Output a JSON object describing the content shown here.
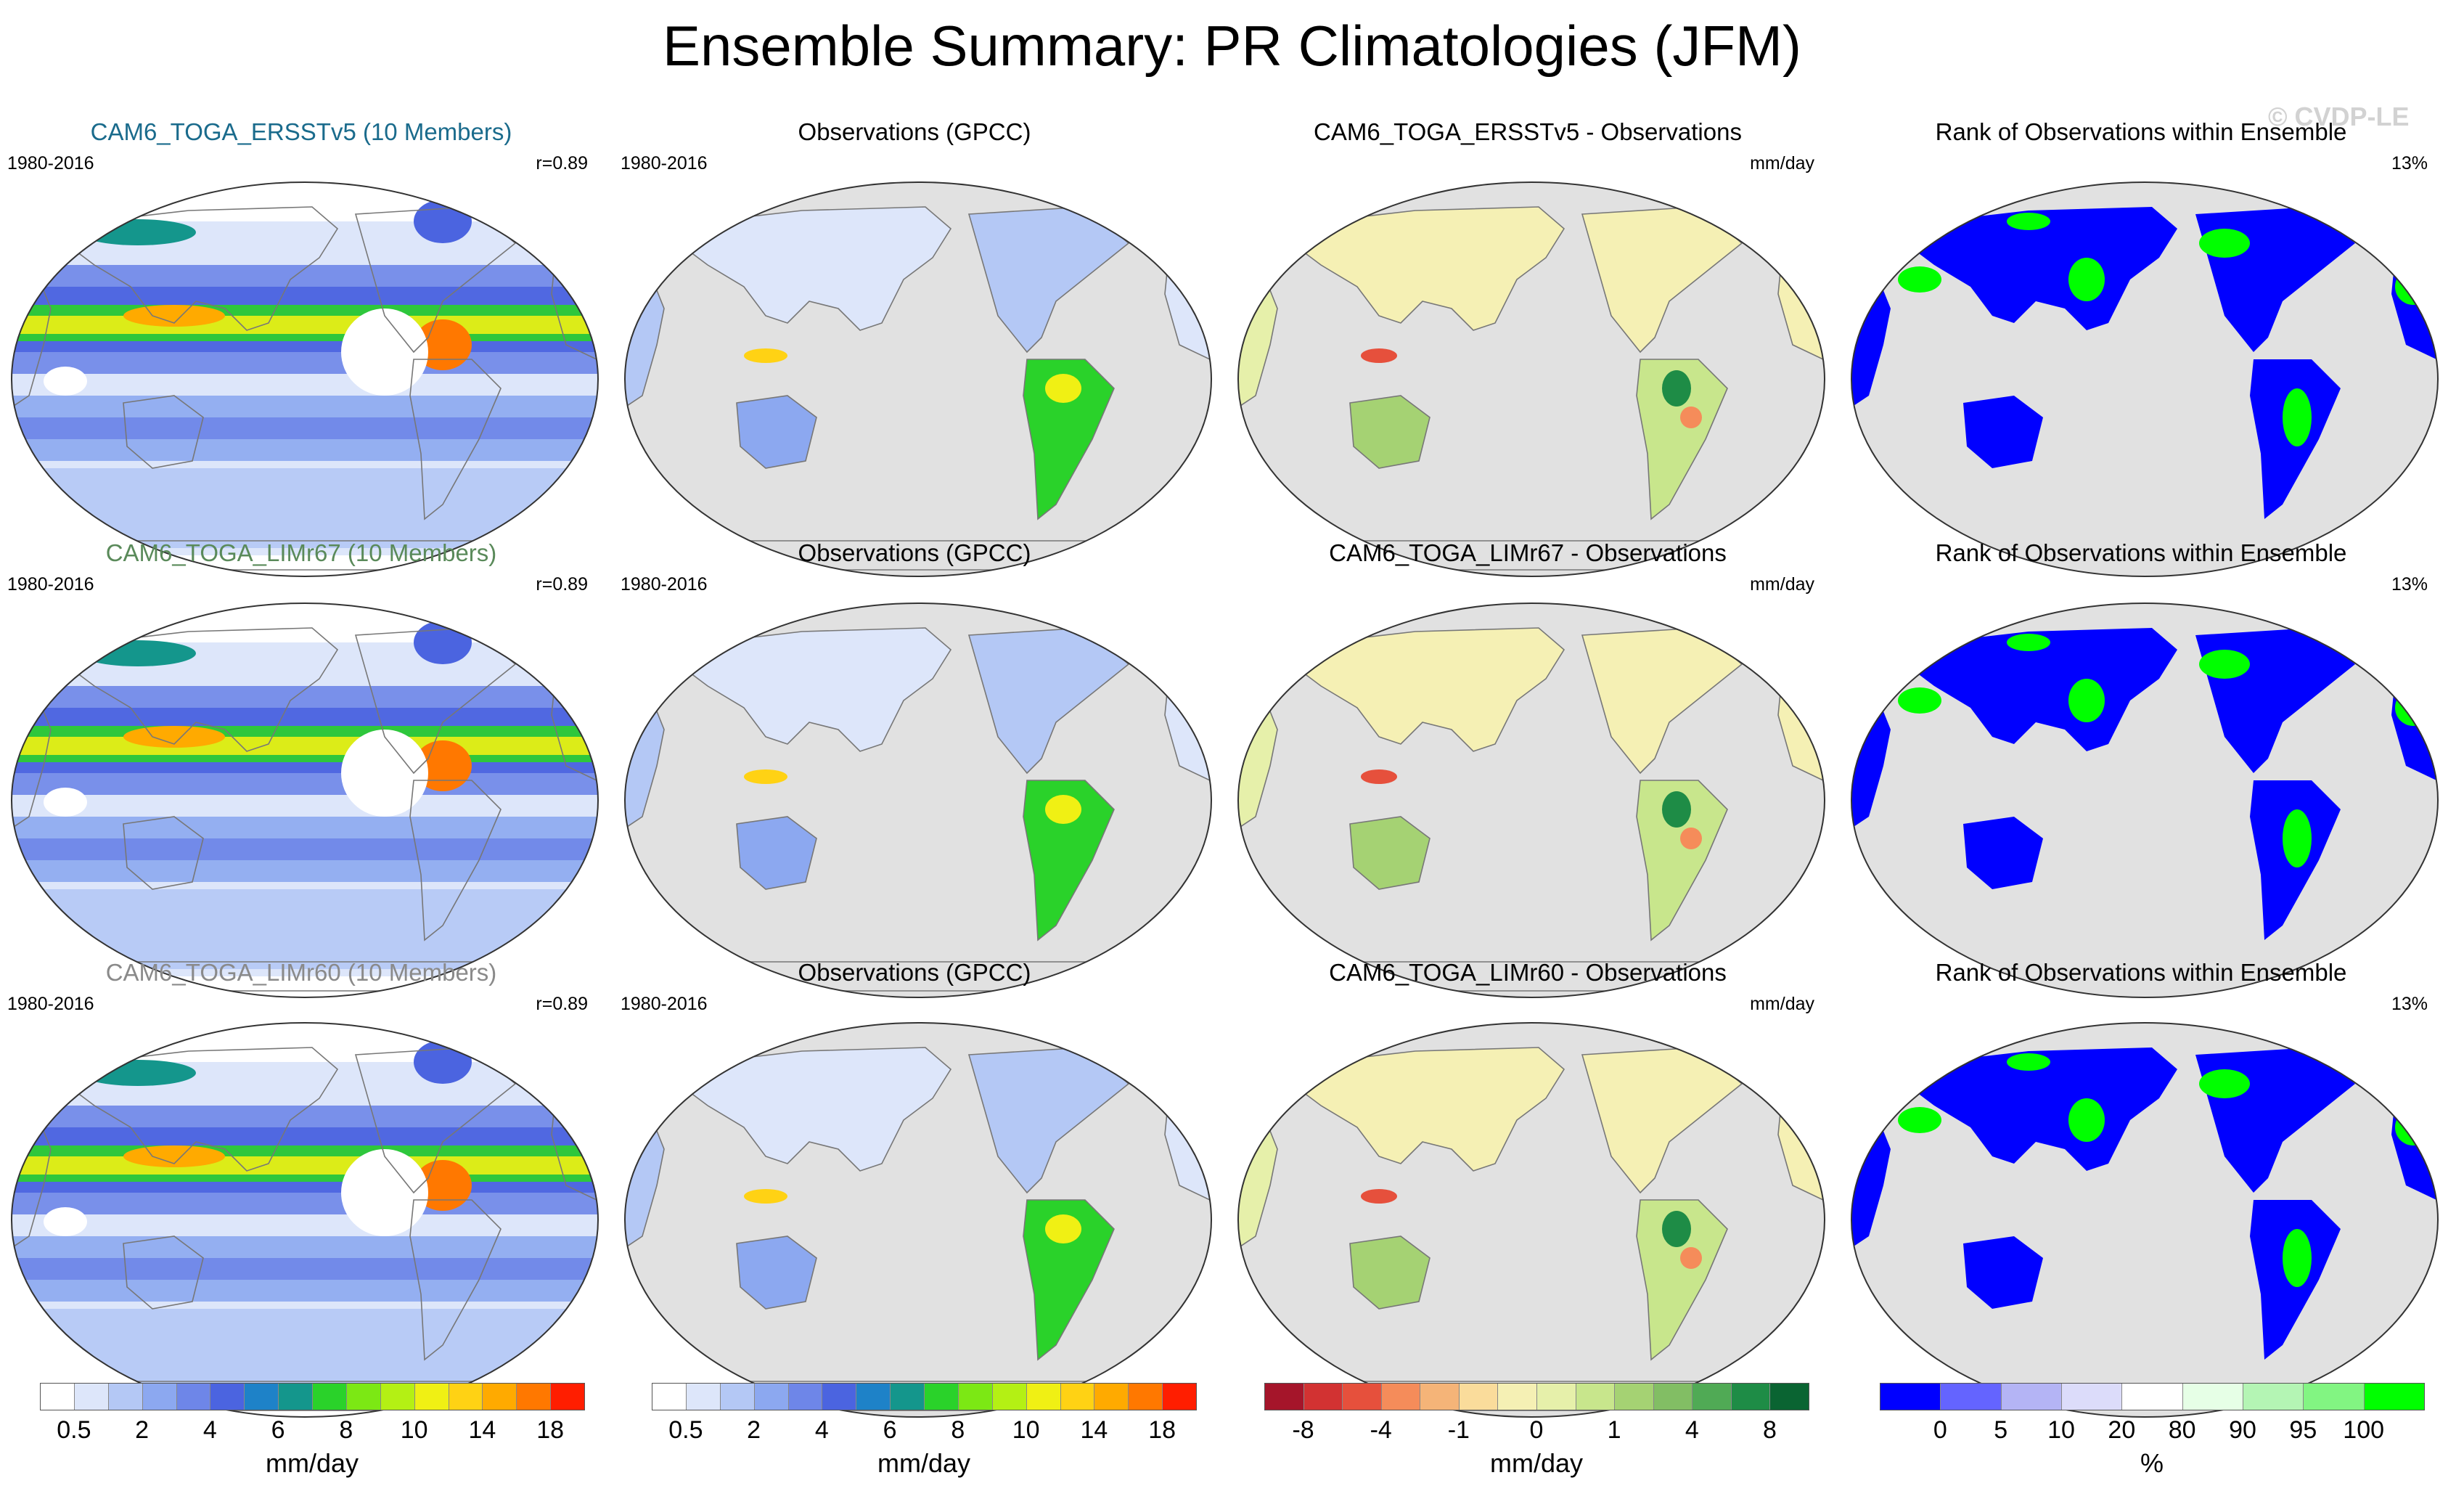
{
  "title": "Ensemble Summary: PR Climatologies (JFM)",
  "watermark": "© CVDP-LE",
  "rows": [
    {
      "model": {
        "title": "CAM6_TOGA_ERSSTv5 (10 Members)",
        "title_color": "#1a6b8c",
        "period": "1980-2016",
        "corr": "r=0.89"
      },
      "obs": {
        "title": "Observations (GPCC)",
        "period": "1980-2016"
      },
      "diff": {
        "title": "CAM6_TOGA_ERSSTv5 - Observations",
        "unit": "mm/day"
      },
      "rank": {
        "title": "Rank of Observations within Ensemble",
        "pct": "13%"
      }
    },
    {
      "model": {
        "title": "CAM6_TOGA_LIMr67 (10 Members)",
        "title_color": "#5a8a5a",
        "period": "1980-2016",
        "corr": "r=0.89"
      },
      "obs": {
        "title": "Observations (GPCC)",
        "period": "1980-2016"
      },
      "diff": {
        "title": "CAM6_TOGA_LIMr67 - Observations",
        "unit": "mm/day"
      },
      "rank": {
        "title": "Rank of Observations within Ensemble",
        "pct": "13%"
      }
    },
    {
      "model": {
        "title": "CAM6_TOGA_LIMr60 (10 Members)",
        "title_color": "#8a8a8a",
        "period": "1980-2016",
        "corr": "r=0.89"
      },
      "obs": {
        "title": "Observations (GPCC)",
        "period": "1980-2016"
      },
      "diff": {
        "title": "CAM6_TOGA_LIMr60 - Observations",
        "unit": "mm/day"
      },
      "rank": {
        "title": "Rank of Observations within Ensemble",
        "pct": "13%"
      }
    }
  ],
  "colorbars": {
    "precip": {
      "colors": [
        "#ffffff",
        "#dde6fa",
        "#b4c8f5",
        "#8ca8f0",
        "#6e86e8",
        "#4b64e0",
        "#1e82c8",
        "#14968c",
        "#2ad22a",
        "#7ce814",
        "#b4f014",
        "#f0f014",
        "#ffd214",
        "#ffaa00",
        "#ff7800",
        "#ff1e00"
      ],
      "ticks": [
        "0.5",
        "2",
        "4",
        "6",
        "8",
        "10",
        "14",
        "18"
      ],
      "unit": "mm/day"
    },
    "diff": {
      "colors": [
        "#a5152a",
        "#d23232",
        "#e6503c",
        "#f58c5a",
        "#f5b478",
        "#fadc9b",
        "#f5f0b4",
        "#e6f0aa",
        "#c8e68c",
        "#a5d273",
        "#82be64",
        "#50aa55",
        "#1e8c46",
        "#0a6432"
      ],
      "ticks": [
        "-8",
        "-4",
        "-1",
        "0",
        "1",
        "4",
        "8"
      ],
      "unit": "mm/day"
    },
    "rank": {
      "colors": [
        "#0000ff",
        "#6464ff",
        "#b4b4f5",
        "#dcdcfa",
        "#ffffff",
        "#e6ffe6",
        "#b4f5b4",
        "#82f582",
        "#00ff00"
      ],
      "ticks": [
        "0",
        "5",
        "10",
        "20",
        "80",
        "90",
        "95",
        "100"
      ],
      "unit": "%"
    }
  }
}
